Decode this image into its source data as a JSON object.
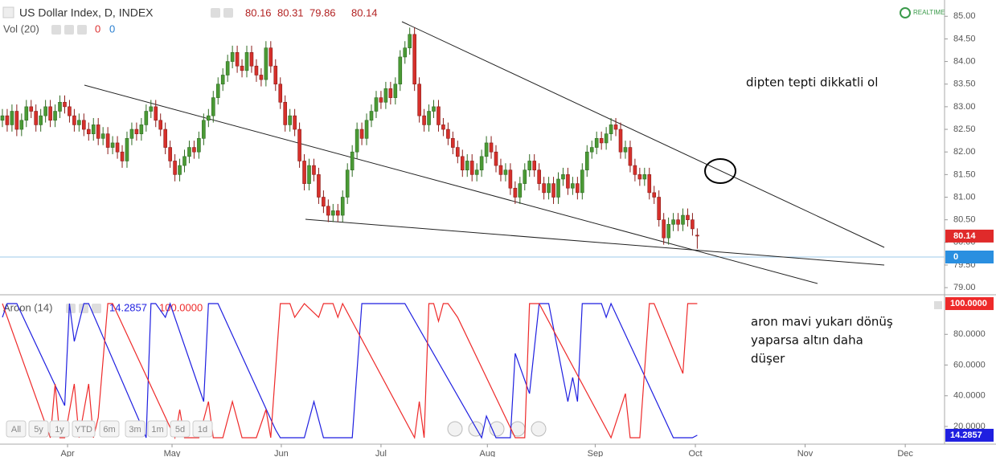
{
  "chart_data": [
    {
      "type": "candlestick",
      "title": "US Dollar Index, D, INDEX",
      "header_values": [
        80.16,
        80.31,
        79.86,
        80.14
      ],
      "volume_label": "Vol (20)",
      "volume_values": [
        0,
        0
      ],
      "realtime_label": "REALTIME",
      "annotation": "dipten tepti dikkatli ol",
      "up_color": "#4a9a35",
      "down_color": "#d6302b",
      "last_tag_color": "#e02a2a",
      "xlim": [
        -0.5,
        196.6
      ],
      "ylim": [
        78.86,
        85.36
      ],
      "xticks": [
        {
          "value": 13.6,
          "label": "Apr"
        },
        {
          "value": 35.4,
          "label": "May"
        },
        {
          "value": 58.2,
          "label": "Jun"
        },
        {
          "value": 79.0,
          "label": "Jul"
        },
        {
          "value": 101.2,
          "label": "Aug"
        },
        {
          "value": 123.7,
          "label": "Sep"
        },
        {
          "value": 144.6,
          "label": "Oct"
        },
        {
          "value": 167.5,
          "label": "Nov"
        },
        {
          "value": 188.4,
          "label": "Dec"
        }
      ],
      "yticks": [
        {
          "value": 85,
          "label": "85.00"
        },
        {
          "value": 84.5,
          "label": "84.50"
        },
        {
          "value": 84,
          "label": "84.00"
        },
        {
          "value": 83.5,
          "label": "83.50"
        },
        {
          "value": 83,
          "label": "83.00"
        },
        {
          "value": 82.5,
          "label": "82.50"
        },
        {
          "value": 82,
          "label": "82.00"
        },
        {
          "value": 81.5,
          "label": "81.50"
        },
        {
          "value": 81,
          "label": "81.00"
        },
        {
          "value": 80.5,
          "label": "80.50"
        },
        {
          "value": 80,
          "label": "80.00"
        },
        {
          "value": 79.5,
          "label": "79.50"
        },
        {
          "value": 79,
          "label": "79.00"
        }
      ],
      "x": [
        0,
        1,
        2,
        3,
        4,
        5,
        6,
        7,
        8,
        9,
        10,
        11,
        12,
        13,
        14,
        15,
        16,
        17,
        18,
        19,
        20,
        21,
        22,
        23,
        24,
        25,
        26,
        27,
        28,
        29,
        30,
        31,
        32,
        33,
        34,
        35,
        36,
        37,
        38,
        39,
        40,
        41,
        42,
        43,
        44,
        45,
        46,
        47,
        48,
        49,
        50,
        51,
        52,
        53,
        54,
        55,
        56,
        57,
        58,
        59,
        60,
        61,
        62,
        63,
        64,
        65,
        66,
        67,
        68,
        69,
        70,
        71,
        72,
        73,
        74,
        75,
        76,
        77,
        78,
        79,
        80,
        81,
        82,
        83,
        84,
        85,
        86,
        87,
        88,
        89,
        90,
        91,
        92,
        93,
        94,
        95,
        96,
        97,
        98,
        99,
        100,
        101,
        102,
        103,
        104,
        105,
        106,
        107,
        108,
        109,
        110,
        111,
        112,
        113,
        114,
        115,
        116,
        117,
        118,
        119,
        120,
        121,
        122,
        123,
        124,
        125,
        126,
        127,
        128,
        129,
        130,
        131,
        132,
        133,
        134,
        135,
        136,
        137,
        138,
        139,
        140,
        141,
        142,
        143,
        144,
        145
      ],
      "open": [
        82.7,
        82.8,
        82.6,
        82.9,
        82.5,
        82.7,
        83.0,
        82.9,
        82.6,
        82.8,
        83.0,
        82.7,
        82.9,
        83.1,
        83.0,
        82.8,
        82.6,
        82.7,
        82.5,
        82.4,
        82.6,
        82.3,
        82.4,
        82.1,
        82.2,
        82.0,
        81.8,
        82.3,
        82.5,
        82.4,
        82.6,
        82.9,
        83.0,
        82.7,
        82.5,
        82.1,
        81.8,
        81.5,
        81.7,
        81.9,
        82.1,
        82.0,
        82.3,
        82.7,
        82.8,
        83.2,
        83.5,
        83.7,
        84.0,
        84.2,
        83.9,
        83.8,
        84.2,
        83.9,
        83.7,
        83.6,
        84.3,
        83.9,
        83.5,
        83.1,
        82.6,
        82.8,
        82.5,
        81.8,
        81.3,
        81.7,
        81.5,
        81.0,
        80.8,
        80.6,
        80.7,
        80.6,
        81.0,
        81.6,
        82.0,
        82.5,
        82.3,
        82.7,
        82.9,
        83.2,
        83.1,
        83.4,
        83.2,
        83.5,
        84.1,
        84.3,
        84.6,
        83.5,
        82.8,
        82.6,
        82.9,
        83.0,
        82.6,
        82.5,
        82.3,
        82.1,
        81.9,
        81.6,
        81.8,
        81.5,
        81.6,
        81.9,
        82.2,
        82.0,
        81.7,
        81.5,
        81.6,
        81.2,
        81.0,
        81.3,
        81.6,
        81.8,
        81.6,
        81.3,
        81.1,
        81.3,
        81.0,
        81.4,
        81.5,
        81.2,
        81.3,
        81.1,
        81.6,
        82.0,
        82.1,
        82.3,
        82.2,
        82.4,
        82.6,
        82.5,
        82.0,
        82.1,
        81.7,
        81.5,
        81.4,
        81.5,
        81.1,
        81.0,
        80.5,
        80.1,
        80.4,
        80.5,
        80.4,
        80.6,
        80.5,
        80.16
      ],
      "high": [
        82.95,
        82.95,
        83.05,
        83.05,
        82.85,
        83.15,
        83.15,
        83.05,
        82.95,
        83.15,
        83.15,
        83.05,
        83.25,
        83.25,
        83.15,
        82.95,
        82.85,
        82.85,
        82.65,
        82.75,
        82.75,
        82.55,
        82.55,
        82.35,
        82.35,
        82.15,
        82.45,
        82.65,
        82.65,
        82.75,
        83.05,
        83.15,
        83.15,
        82.85,
        82.65,
        82.25,
        81.95,
        81.85,
        82.05,
        82.25,
        82.25,
        82.45,
        82.85,
        82.95,
        83.35,
        83.65,
        83.85,
        84.15,
        84.35,
        84.35,
        84.05,
        84.35,
        84.35,
        84.05,
        83.85,
        84.45,
        84.45,
        84.05,
        83.65,
        83.25,
        82.95,
        82.95,
        82.65,
        81.95,
        81.85,
        81.85,
        81.65,
        81.15,
        80.95,
        80.85,
        80.85,
        81.15,
        81.75,
        82.15,
        82.65,
        82.65,
        82.85,
        83.05,
        83.35,
        83.35,
        83.55,
        83.55,
        83.65,
        84.25,
        84.45,
        84.75,
        84.75,
        83.65,
        82.95,
        83.05,
        83.15,
        83.15,
        82.75,
        82.65,
        82.45,
        82.25,
        82.05,
        81.95,
        81.95,
        81.75,
        82.05,
        82.35,
        82.35,
        82.15,
        81.85,
        81.75,
        81.75,
        81.35,
        81.45,
        81.75,
        81.95,
        81.95,
        81.75,
        81.45,
        81.45,
        81.45,
        81.55,
        81.65,
        81.65,
        81.45,
        81.45,
        81.75,
        82.15,
        82.25,
        82.45,
        82.45,
        82.55,
        82.75,
        82.75,
        82.65,
        82.25,
        82.25,
        81.85,
        81.65,
        81.65,
        81.65,
        81.25,
        81.15,
        80.65,
        80.55,
        80.65,
        80.65,
        80.75,
        80.75,
        80.65,
        80.31
      ],
      "low": [
        82.55,
        82.45,
        82.45,
        82.35,
        82.35,
        82.55,
        82.75,
        82.45,
        82.45,
        82.65,
        82.55,
        82.55,
        82.75,
        82.85,
        82.65,
        82.45,
        82.45,
        82.35,
        82.25,
        82.25,
        82.15,
        82.15,
        81.95,
        81.95,
        81.85,
        81.65,
        81.65,
        82.15,
        82.25,
        82.25,
        82.45,
        82.75,
        82.55,
        82.35,
        81.95,
        81.65,
        81.35,
        81.35,
        81.55,
        81.75,
        81.85,
        81.85,
        82.15,
        82.55,
        82.65,
        83.05,
        83.35,
        83.55,
        83.85,
        83.75,
        83.65,
        83.65,
        83.75,
        83.55,
        83.45,
        83.45,
        83.75,
        83.35,
        82.95,
        82.45,
        82.45,
        82.35,
        81.65,
        81.15,
        81.15,
        81.35,
        80.85,
        80.65,
        80.45,
        80.45,
        80.45,
        80.45,
        80.85,
        81.45,
        81.85,
        82.15,
        82.15,
        82.55,
        82.75,
        82.95,
        82.95,
        83.05,
        83.05,
        83.35,
        83.95,
        84.15,
        83.35,
        82.65,
        82.45,
        82.45,
        82.75,
        82.45,
        82.35,
        82.15,
        81.95,
        81.75,
        81.45,
        81.45,
        81.35,
        81.35,
        81.45,
        81.75,
        81.85,
        81.55,
        81.35,
        81.35,
        81.05,
        80.85,
        80.85,
        81.15,
        81.45,
        81.45,
        81.15,
        80.95,
        80.95,
        80.85,
        80.85,
        81.25,
        81.05,
        81.05,
        80.95,
        80.95,
        81.45,
        81.85,
        81.95,
        82.05,
        82.05,
        82.25,
        82.35,
        81.85,
        81.85,
        81.55,
        81.35,
        81.25,
        81.25,
        80.95,
        80.85,
        80.35,
        79.95,
        79.95,
        80.25,
        80.25,
        80.25,
        80.35,
        80.15,
        79.86
      ],
      "close": [
        82.8,
        82.6,
        82.9,
        82.5,
        82.7,
        83.0,
        82.9,
        82.6,
        82.8,
        83.0,
        82.7,
        82.9,
        83.1,
        83.0,
        82.8,
        82.6,
        82.7,
        82.5,
        82.4,
        82.6,
        82.3,
        82.4,
        82.1,
        82.2,
        82.0,
        81.8,
        82.3,
        82.5,
        82.4,
        82.6,
        82.9,
        83.0,
        82.7,
        82.5,
        82.1,
        81.8,
        81.5,
        81.7,
        81.9,
        82.1,
        82.0,
        82.3,
        82.7,
        82.8,
        83.2,
        83.5,
        83.7,
        84.0,
        84.2,
        83.9,
        83.8,
        84.2,
        83.9,
        83.7,
        83.6,
        84.3,
        83.9,
        83.5,
        83.1,
        82.6,
        82.8,
        82.5,
        81.8,
        81.3,
        81.7,
        81.5,
        81.0,
        80.8,
        80.6,
        80.7,
        80.6,
        81.0,
        81.6,
        82.0,
        82.5,
        82.3,
        82.7,
        82.9,
        83.2,
        83.1,
        83.4,
        83.2,
        83.5,
        84.1,
        84.3,
        84.6,
        83.5,
        82.8,
        82.6,
        82.9,
        83.0,
        82.6,
        82.5,
        82.3,
        82.1,
        81.9,
        81.6,
        81.8,
        81.5,
        81.6,
        81.9,
        82.2,
        82.0,
        81.7,
        81.5,
        81.6,
        81.2,
        81.0,
        81.3,
        81.6,
        81.8,
        81.6,
        81.3,
        81.1,
        81.3,
        81.0,
        81.4,
        81.5,
        81.2,
        81.3,
        81.1,
        81.6,
        82.0,
        82.1,
        82.3,
        82.2,
        82.4,
        82.6,
        82.5,
        82.0,
        82.1,
        81.7,
        81.5,
        81.4,
        81.5,
        81.1,
        81.0,
        80.5,
        80.1,
        80.4,
        80.5,
        80.4,
        80.6,
        80.5,
        80.3,
        80.14
      ]
    },
    {
      "type": "line",
      "title": "Aroon (14)",
      "xlim": [
        -0.5,
        196.6
      ],
      "ylim": [
        8.5,
        104.2
      ],
      "annotation": [
        "aron mavi yukarı dönüş",
        "yaparsa altın daha",
        "düşer"
      ],
      "yticks": [
        {
          "value": 20,
          "label": "20.0000"
        },
        {
          "value": 40,
          "label": "40.0000"
        },
        {
          "value": 60,
          "label": "60.0000"
        },
        {
          "value": 80,
          "label": "80.0000"
        }
      ],
      "series": [
        {
          "name": "Aroon Down",
          "color": "#1f1fe0",
          "last_label": "14.2857",
          "x": [
            0,
            1,
            3,
            13,
            14,
            15,
            17,
            18,
            29,
            30,
            31,
            32,
            34,
            35,
            42,
            43,
            45,
            57,
            58,
            63,
            65,
            67,
            73,
            75,
            84,
            100,
            101,
            103,
            106,
            107,
            110,
            112,
            114,
            118,
            119,
            120,
            121,
            125,
            126,
            127,
            140,
            144,
            145
          ],
          "values": [
            91.1,
            100,
            100,
            33.6,
            100,
            75.4,
            100,
            100,
            20.5,
            12.7,
            100,
            100,
            91.1,
            100,
            36.2,
            100,
            100,
            17.9,
            12.7,
            12.7,
            36.2,
            12.7,
            12.7,
            100,
            100,
            12.7,
            26.8,
            12.7,
            12.7,
            67.6,
            41.4,
            100,
            100,
            36.2,
            51.9,
            36.2,
            100,
            100,
            91.1,
            100,
            12.7,
            12.7,
            14.2857
          ]
        },
        {
          "name": "Aroon Up",
          "color": "#ee2a2a",
          "last_label": "100.0000",
          "x": [
            0,
            10,
            11,
            12,
            13,
            15,
            16,
            18,
            19,
            20,
            22,
            23,
            36,
            37,
            38,
            41,
            43,
            44,
            46,
            48,
            50,
            53,
            55,
            56,
            58,
            60,
            61,
            63,
            66,
            67,
            69,
            70,
            71,
            86,
            87,
            88,
            89,
            90,
            91,
            92,
            93,
            95,
            107,
            109,
            110,
            112,
            127,
            130,
            131,
            133,
            135,
            136,
            142,
            143,
            145
          ],
          "values": [
            100,
            12.7,
            47.7,
            12.7,
            12.7,
            47.7,
            12.7,
            47.7,
            12.7,
            25.8,
            100,
            100,
            12.7,
            31,
            12.7,
            12.7,
            36.2,
            12.7,
            12.7,
            36.2,
            12.7,
            12.7,
            31,
            12.7,
            100,
            100,
            91.1,
            100,
            91.1,
            100,
            100,
            91.1,
            100,
            12.7,
            36.2,
            12.7,
            100,
            100,
            88.5,
            100,
            100,
            91.1,
            12.7,
            12.7,
            100,
            100,
            12.7,
            41.4,
            12.7,
            12.7,
            100,
            100,
            54.5,
            100,
            100
          ]
        }
      ]
    }
  ],
  "range_buttons": [
    "All",
    "5y",
    "1y",
    "YTD",
    "6m",
    "3m",
    "1m",
    "5d",
    "1d"
  ]
}
